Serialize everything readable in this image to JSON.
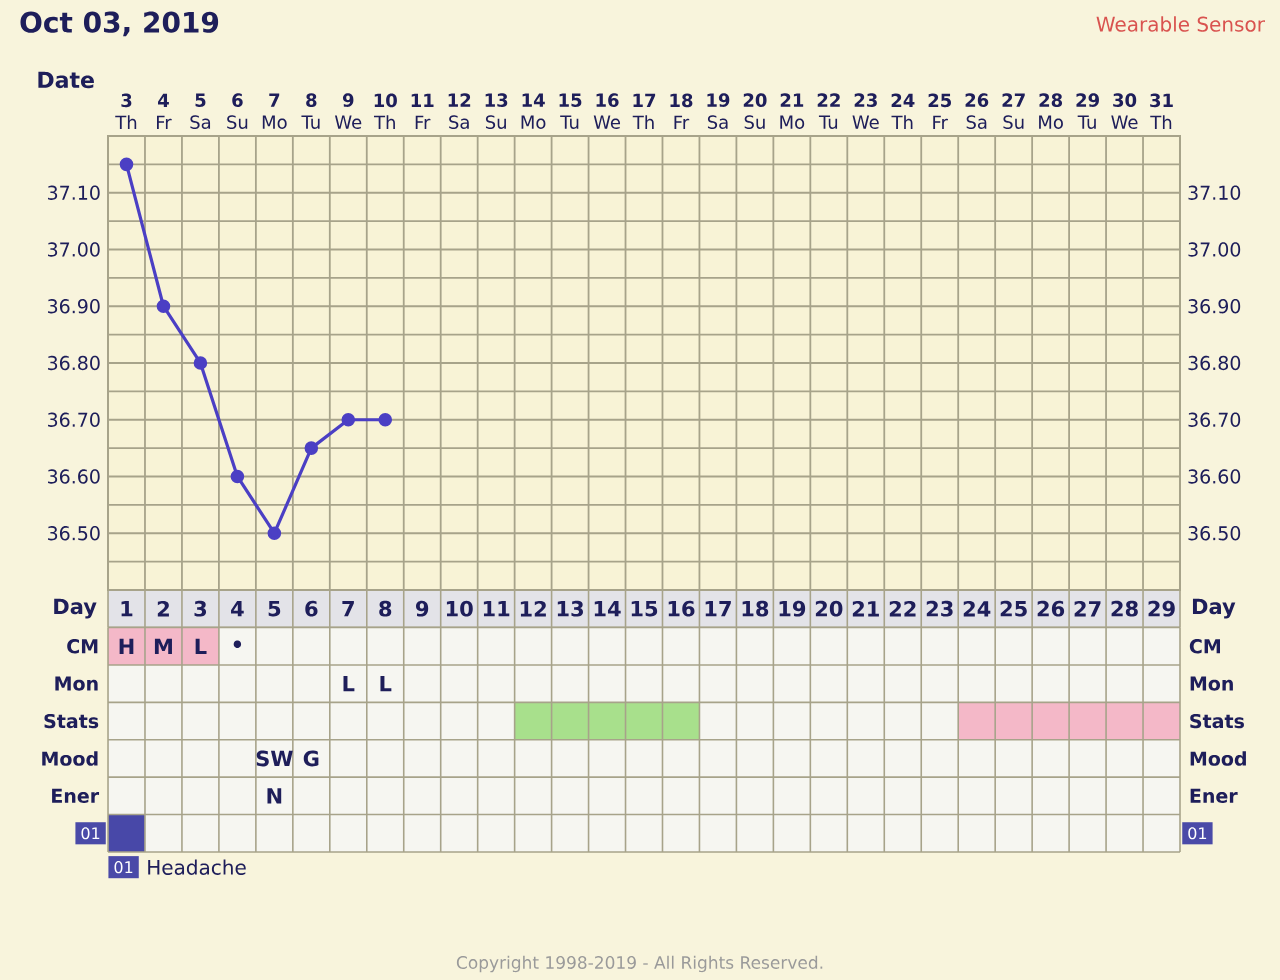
{
  "chart_data": [
    {
      "type": "line",
      "title": "Oct 03, 2019",
      "subtitle": "Wearable Sensor",
      "xlabel": "Day",
      "x2label": "Date",
      "xlim": [
        0.5,
        29.5
      ],
      "xticks": [
        1,
        2,
        3,
        4,
        5,
        6,
        7,
        8,
        9,
        10,
        11,
        12,
        13,
        14,
        15,
        16,
        17,
        18,
        19,
        20,
        21,
        22,
        23,
        24,
        25,
        26,
        27,
        28,
        29
      ],
      "x2lim": [
        2.5,
        31.5
      ],
      "x2ticks": [
        {
          "value": 3,
          "label": "**3** Th"
        },
        {
          "value": 4,
          "label": "**4** Fr"
        },
        {
          "value": 5,
          "label": "**5** Sa"
        },
        {
          "value": 6,
          "label": "**6** Su"
        },
        {
          "value": 7,
          "label": "**7** Mo"
        },
        {
          "value": 8,
          "label": "**8** Tu"
        },
        {
          "value": 9,
          "label": "**9** We"
        },
        {
          "value": 10,
          "label": "**10** Th"
        },
        {
          "value": 11,
          "label": "**11** Fr"
        },
        {
          "value": 12,
          "label": "**12** Sa"
        },
        {
          "value": 13,
          "label": "**13** Su"
        },
        {
          "value": 14,
          "label": "**14** Mo"
        },
        {
          "value": 15,
          "label": "**15** Tu"
        },
        {
          "value": 16,
          "label": "**16** We"
        },
        {
          "value": 17,
          "label": "**17** Th"
        },
        {
          "value": 18,
          "label": "**18** Fr"
        },
        {
          "value": 19,
          "label": "**19** Sa"
        },
        {
          "value": 20,
          "label": "**20** Su"
        },
        {
          "value": 21,
          "label": "**21** Mo"
        },
        {
          "value": 22,
          "label": "**22** Tu"
        },
        {
          "value": 23,
          "label": "**23** We"
        },
        {
          "value": 24,
          "label": "**24** Th"
        },
        {
          "value": 25,
          "label": "**25** Fr"
        },
        {
          "value": 26,
          "label": "**26** Sa"
        },
        {
          "value": 27,
          "label": "**27** Su"
        },
        {
          "value": 28,
          "label": "**28** Mo"
        },
        {
          "value": 29,
          "label": "**29** Tu"
        },
        {
          "value": 30,
          "label": "**30** We"
        },
        {
          "value": 31,
          "label": "**31** Th"
        }
      ],
      "ylim": [
        36.4,
        37.2
      ],
      "yticks": [
        {
          "value": 36.4,
          "label": null
        },
        {
          "value": 36.45,
          "label": null
        },
        {
          "value": 36.5,
          "label": "36.50"
        },
        {
          "value": 36.55,
          "label": null
        },
        {
          "value": 36.6,
          "label": "36.60"
        },
        {
          "value": 36.65,
          "label": null
        },
        {
          "value": 36.7,
          "label": "36.70"
        },
        {
          "value": 36.75,
          "label": null
        },
        {
          "value": 36.8,
          "label": "36.80"
        },
        {
          "value": 36.85,
          "label": null
        },
        {
          "value": 36.9,
          "label": "36.90"
        },
        {
          "value": 36.95,
          "label": null
        },
        {
          "value": 37.0,
          "label": "37.00"
        },
        {
          "value": 37.05,
          "label": null
        },
        {
          "value": 37.1,
          "label": "37.10"
        },
        {
          "value": 37.15,
          "label": null
        },
        {
          "value": 37.2,
          "label": null
        }
      ],
      "y2lim": [
        36.4,
        37.2
      ],
      "y2ticks": [
        {
          "value": 36.4,
          "label": null
        },
        {
          "value": 36.45,
          "label": null
        },
        {
          "value": 36.5,
          "label": "36.50"
        },
        {
          "value": 36.55,
          "label": null
        },
        {
          "value": 36.6,
          "label": "36.60"
        },
        {
          "value": 36.65,
          "label": null
        },
        {
          "value": 36.7,
          "label": "36.70"
        },
        {
          "value": 36.75,
          "label": null
        },
        {
          "value": 36.8,
          "label": "36.80"
        },
        {
          "value": 36.85,
          "label": null
        },
        {
          "value": 36.9,
          "label": "36.90"
        },
        {
          "value": 36.95,
          "label": null
        },
        {
          "value": 37.0,
          "label": "37.00"
        },
        {
          "value": 37.05,
          "label": null
        },
        {
          "value": 37.1,
          "label": "37.10"
        },
        {
          "value": 37.15,
          "label": null
        },
        {
          "value": 37.2,
          "label": null
        }
      ],
      "grid": true,
      "marker": "circle",
      "line_style": "solid",
      "series": [
        {
          "color": "#4b3fc4",
          "x": [
            1,
            2,
            3,
            4,
            5,
            6,
            7,
            8
          ],
          "values": [
            37.15,
            36.9,
            36.8,
            36.6,
            36.5,
            36.65,
            36.7,
            36.7
          ]
        }
      ]
    },
    {
      "type": "other",
      "y_categories": [
        "CM",
        "Mon",
        "Stats",
        "Mood",
        "Ener",
        "01"
      ],
      "y2_categories": [
        "CM",
        "Mon",
        "Stats",
        "Mood",
        "Ener",
        "01"
      ],
      "cell_labels": [
        [
          "H",
          "M",
          "L",
          "•",
          null,
          null,
          null,
          null,
          null,
          null,
          null,
          null,
          null,
          null,
          null,
          null,
          null,
          null,
          null,
          null,
          null,
          null,
          null,
          null,
          null,
          null,
          null,
          null,
          null
        ],
        [
          null,
          null,
          null,
          null,
          null,
          null,
          "L",
          "L",
          null,
          null,
          null,
          null,
          null,
          null,
          null,
          null,
          null,
          null,
          null,
          null,
          null,
          null,
          null,
          null,
          null,
          null,
          null,
          null,
          null
        ],
        [
          null,
          null,
          null,
          null,
          null,
          null,
          null,
          null,
          null,
          null,
          null,
          null,
          null,
          null,
          null,
          null,
          null,
          null,
          null,
          null,
          null,
          null,
          null,
          null,
          null,
          null,
          null,
          null,
          null
        ],
        [
          null,
          null,
          null,
          null,
          "SW",
          "G",
          null,
          null,
          null,
          null,
          null,
          null,
          null,
          null,
          null,
          null,
          null,
          null,
          null,
          null,
          null,
          null,
          null,
          null,
          null,
          null,
          null,
          null,
          null
        ],
        [
          null,
          null,
          null,
          null,
          "N",
          null,
          null,
          null,
          null,
          null,
          null,
          null,
          null,
          null,
          null,
          null,
          null,
          null,
          null,
          null,
          null,
          null,
          null,
          null,
          null,
          null,
          null,
          null,
          null
        ],
        [
          null,
          null,
          null,
          null,
          null,
          null,
          null,
          null,
          null,
          null,
          null,
          null,
          null,
          null,
          null,
          null,
          null,
          null,
          null,
          null,
          null,
          null,
          null,
          null,
          null,
          null,
          null,
          null,
          null
        ]
      ],
      "colors": [
        [
          "#f4b8c8",
          "#f4b8c8",
          "#f4b8c8",
          null,
          null,
          null,
          null,
          null,
          null,
          null,
          null,
          null,
          null,
          null,
          null,
          null,
          null,
          null,
          null,
          null,
          null,
          null,
          null,
          null,
          null,
          null,
          null,
          null,
          null
        ],
        [
          null,
          null,
          null,
          null,
          null,
          null,
          null,
          null,
          null,
          null,
          null,
          null,
          null,
          null,
          null,
          null,
          null,
          null,
          null,
          null,
          null,
          null,
          null,
          null,
          null,
          null,
          null,
          null,
          null
        ],
        [
          null,
          null,
          null,
          null,
          null,
          null,
          null,
          null,
          null,
          null,
          null,
          "#a8e08c",
          "#a8e08c",
          "#a8e08c",
          "#a8e08c",
          "#a8e08c",
          null,
          null,
          null,
          null,
          null,
          null,
          null,
          "#f4b8c8",
          "#f4b8c8",
          "#f4b8c8",
          "#f4b8c8",
          "#f4b8c8",
          "#f4b8c8"
        ],
        [
          null,
          null,
          null,
          null,
          null,
          null,
          null,
          null,
          null,
          null,
          null,
          null,
          null,
          null,
          null,
          null,
          null,
          null,
          null,
          null,
          null,
          null,
          null,
          null,
          null,
          null,
          null,
          null,
          null
        ],
        [
          null,
          null,
          null,
          null,
          null,
          null,
          null,
          null,
          null,
          null,
          null,
          null,
          null,
          null,
          null,
          null,
          null,
          null,
          null,
          null,
          null,
          null,
          null,
          null,
          null,
          null,
          null,
          null,
          null
        ],
        [
          "#4848a8",
          null,
          null,
          null,
          null,
          null,
          null,
          null,
          null,
          null,
          null,
          null,
          null,
          null,
          null,
          null,
          null,
          null,
          null,
          null,
          null,
          null,
          null,
          null,
          null,
          null,
          null,
          null,
          null
        ]
      ],
      "annotations": [
        "01",
        "Headache",
        "Copyright 1998-2019 - All Rights Reserved."
      ]
    }
  ]
}
